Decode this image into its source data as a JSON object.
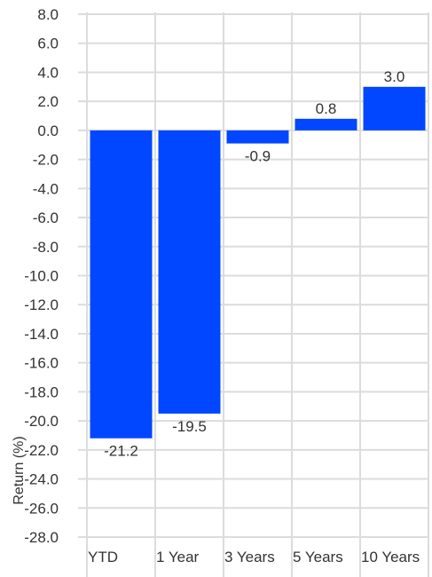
{
  "chart_data": {
    "type": "bar",
    "categories": [
      "YTD",
      "1 Year",
      "3 Years",
      "5 Years",
      "10 Years"
    ],
    "values": [
      -21.2,
      -19.5,
      -0.9,
      0.8,
      3.0
    ],
    "value_labels": [
      "-21.2",
      "-19.5",
      "-0.9",
      "0.8",
      "3.0"
    ],
    "title": "",
    "xlabel": "",
    "ylabel": "Return (%)",
    "ylim": [
      -28,
      8
    ],
    "ytick_step": 2,
    "yticks": [
      "8.0",
      "6.0",
      "4.0",
      "2.0",
      "0.0",
      "-2.0",
      "-4.0",
      "-6.0",
      "-8.0",
      "-10.0",
      "-12.0",
      "-14.0",
      "-16.0",
      "-18.0",
      "-20.0",
      "-22.0",
      "-24.0",
      "-26.0",
      "-28.0"
    ],
    "bar_color": "#0047ff",
    "grid": true,
    "legend": "none"
  }
}
